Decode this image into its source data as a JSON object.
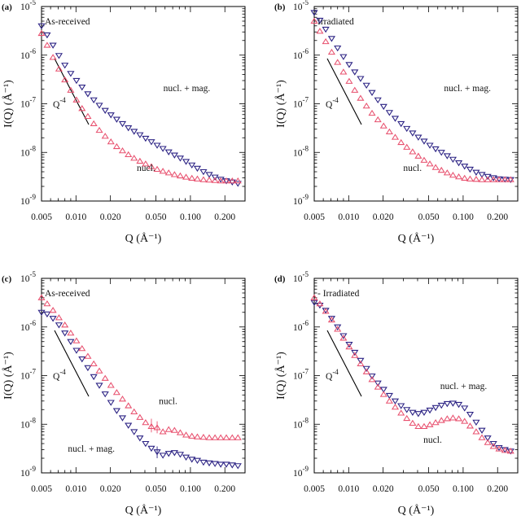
{
  "chart_data": [
    {
      "panel_label": "(a)",
      "inset_label": "As-received",
      "type": "scatter",
      "x_scale": "log",
      "y_scale": "log",
      "xlim": [
        0.005,
        0.3
      ],
      "ylim": [
        1e-09,
        1e-05
      ],
      "xlabel": "Q (Å⁻¹)",
      "ylabel": "I(Q) (Å⁻¹)",
      "xticklabels": [
        "0.005",
        "0.010",
        "0.020",
        "0.050",
        "0.100",
        "0.200"
      ],
      "yticklabels": [
        "10-9",
        "10-8",
        "10-7",
        "10-6",
        "10-5"
      ],
      "slope_label": "Q-4",
      "series": [
        {
          "marker": "triangle-down",
          "color": "#2c2384",
          "label": "nucl. + mag.",
          "x": [
            0.005,
            0.0056,
            0.0063,
            0.0071,
            0.008,
            0.009,
            0.0101,
            0.0113,
            0.0127,
            0.0143,
            0.016,
            0.018,
            0.0202,
            0.0227,
            0.0255,
            0.0287,
            0.0322,
            0.0362,
            0.0406,
            0.0456,
            0.0512,
            0.0575,
            0.0646,
            0.0726,
            0.0815,
            0.0916,
            0.103,
            0.115,
            0.13,
            0.146,
            0.164,
            0.184,
            0.206,
            0.232,
            0.26
          ],
          "y": [
            4e-06,
            2.6e-06,
            1.6e-06,
            9.8e-07,
            6.2e-07,
            4.2e-07,
            3e-07,
            2.2e-07,
            1.6e-07,
            1.2e-07,
            9.3e-08,
            7.3e-08,
            5.9e-08,
            4.8e-08,
            3.9e-08,
            3.2e-08,
            2.7e-08,
            2.3e-08,
            1.95e-08,
            1.65e-08,
            1.4e-08,
            1.2e-08,
            1.02e-08,
            8.8e-09,
            7.6e-09,
            6.5e-09,
            5.5e-09,
            4.7e-09,
            4e-09,
            3.5e-09,
            3.1e-09,
            2.8e-09,
            2.6e-09,
            2.45e-09,
            2.3e-09
          ]
        },
        {
          "marker": "triangle-up",
          "color": "#e8506e",
          "label": "nucl.",
          "x": [
            0.005,
            0.0056,
            0.0063,
            0.0071,
            0.008,
            0.009,
            0.0101,
            0.0113,
            0.0127,
            0.0143,
            0.016,
            0.018,
            0.0202,
            0.0227,
            0.0255,
            0.0287,
            0.0322,
            0.0362,
            0.0406,
            0.0456,
            0.0512,
            0.0575,
            0.0646,
            0.0726,
            0.0815,
            0.0916,
            0.103,
            0.115,
            0.13,
            0.146,
            0.164,
            0.184,
            0.206,
            0.232,
            0.26
          ],
          "y": [
            2.8e-06,
            1.6e-06,
            9e-07,
            5.2e-07,
            3.1e-07,
            1.9e-07,
            1.2e-07,
            8e-08,
            5.5e-08,
            3.9e-08,
            2.85e-08,
            2.15e-08,
            1.65e-08,
            1.32e-08,
            1.08e-08,
            9e-09,
            7.6e-09,
            6.6e-09,
            5.8e-09,
            5.1e-09,
            4.5e-09,
            4.1e-09,
            3.8e-09,
            3.5e-09,
            3.3e-09,
            3.1e-09,
            2.95e-09,
            2.85e-09,
            2.75e-09,
            2.7e-09,
            2.65e-09,
            2.6e-09,
            2.6e-09,
            2.6e-09,
            2.6e-09
          ]
        }
      ],
      "annotations": [
        {
          "text": "nucl. + mag.",
          "x": 0.058,
          "y": 1.8e-07
        },
        {
          "text": "nucl.",
          "x": 0.034,
          "y": 4.2e-09
        }
      ]
    },
    {
      "panel_label": "(b)",
      "inset_label": "Irradiated",
      "type": "scatter",
      "x_scale": "log",
      "y_scale": "log",
      "xlim": [
        0.005,
        0.3
      ],
      "ylim": [
        1e-09,
        1e-05
      ],
      "xlabel": "Q (Å⁻¹)",
      "ylabel": "I(Q) (Å⁻¹)",
      "xticklabels": [
        "0.005",
        "0.010",
        "0.020",
        "0.050",
        "0.100",
        "0.200"
      ],
      "yticklabels": [
        "10-9",
        "10-8",
        "10-7",
        "10-6",
        "10-5"
      ],
      "slope_label": "Q-4",
      "series": [
        {
          "marker": "triangle-down",
          "color": "#2c2384",
          "label": "nucl. + mag.",
          "x": [
            0.005,
            0.0056,
            0.0063,
            0.0071,
            0.008,
            0.009,
            0.0101,
            0.0113,
            0.0127,
            0.0143,
            0.016,
            0.018,
            0.0202,
            0.0227,
            0.0255,
            0.0287,
            0.0322,
            0.0362,
            0.0406,
            0.0456,
            0.0512,
            0.0575,
            0.0646,
            0.0726,
            0.0815,
            0.0916,
            0.103,
            0.115,
            0.13,
            0.146,
            0.164,
            0.184,
            0.206,
            0.232,
            0.26
          ],
          "y": [
            7.5e-06,
            5.2e-06,
            3.4e-06,
            2.2e-06,
            1.4e-06,
            9.3e-07,
            6.4e-07,
            4.5e-07,
            3.3e-07,
            2.4e-07,
            1.7e-07,
            1.2e-07,
            8.8e-08,
            6.6e-08,
            5e-08,
            3.9e-08,
            3.1e-08,
            2.5e-08,
            2.05e-08,
            1.7e-08,
            1.4e-08,
            1.18e-08,
            1e-08,
            8.5e-09,
            7.2e-09,
            6.1e-09,
            5.2e-09,
            4.5e-09,
            3.9e-09,
            3.5e-09,
            3.2e-09,
            3e-09,
            2.85e-09,
            2.8e-09,
            2.75e-09
          ]
        },
        {
          "marker": "triangle-up",
          "color": "#e8506e",
          "label": "nucl.",
          "x": [
            0.005,
            0.0056,
            0.0063,
            0.0071,
            0.008,
            0.009,
            0.0101,
            0.0113,
            0.0127,
            0.0143,
            0.016,
            0.018,
            0.0202,
            0.0227,
            0.0255,
            0.0287,
            0.0322,
            0.0362,
            0.0406,
            0.0456,
            0.0512,
            0.0575,
            0.0646,
            0.0726,
            0.0815,
            0.0916,
            0.103,
            0.115,
            0.13,
            0.146,
            0.164,
            0.184,
            0.206,
            0.232,
            0.26
          ],
          "y": [
            5e-06,
            3.1e-06,
            1.9e-06,
            1.15e-06,
            7.1e-07,
            4.5e-07,
            2.9e-07,
            1.9e-07,
            1.3e-07,
            9e-08,
            6.4e-08,
            4.7e-08,
            3.5e-08,
            2.65e-08,
            2.05e-08,
            1.6e-08,
            1.28e-08,
            1.03e-08,
            8.4e-09,
            6.9e-09,
            5.8e-09,
            4.9e-09,
            4.3e-09,
            3.8e-09,
            3.4e-09,
            3.15e-09,
            2.95e-09,
            2.85e-09,
            2.8e-09,
            2.75e-09,
            2.75e-09,
            2.75e-09,
            2.75e-09,
            2.75e-09,
            2.75e-09
          ]
        }
      ],
      "annotations": [
        {
          "text": "nucl. + mag.",
          "x": 0.068,
          "y": 1.8e-07
        },
        {
          "text": "nucl.",
          "x": 0.03,
          "y": 4.2e-09
        }
      ]
    },
    {
      "panel_label": "(c)",
      "inset_label": "As-received",
      "type": "scatter",
      "x_scale": "log",
      "y_scale": "log",
      "xlim": [
        0.005,
        0.3
      ],
      "ylim": [
        1e-09,
        1e-05
      ],
      "xlabel": "Q (Å⁻¹)",
      "ylabel": "I(Q) (Å⁻¹)",
      "xticklabels": [
        "0.005",
        "0.010",
        "0.020",
        "0.050",
        "0.100",
        "0.200"
      ],
      "yticklabels": [
        "10-9",
        "10-8",
        "10-7",
        "10-6",
        "10-5"
      ],
      "slope_label": "Q-4",
      "series": [
        {
          "marker": "triangle-down",
          "color": "#2c2384",
          "label": "nucl. + mag.",
          "x": [
            0.005,
            0.0056,
            0.0063,
            0.0071,
            0.008,
            0.009,
            0.0101,
            0.0113,
            0.0127,
            0.0143,
            0.016,
            0.018,
            0.0202,
            0.0227,
            0.0255,
            0.0287,
            0.0322,
            0.0362,
            0.0406,
            0.0456,
            0.0512,
            0.0575,
            0.0646,
            0.0726,
            0.0815,
            0.0916,
            0.103,
            0.115,
            0.13,
            0.146,
            0.164,
            0.184,
            0.206,
            0.232,
            0.26
          ],
          "y": [
            2e-06,
            1.85e-06,
            1.5e-06,
            1.1e-06,
            7.5e-07,
            5e-07,
            3.3e-07,
            2.2e-07,
            1.45e-07,
            9.5e-08,
            6.3e-08,
            4.2e-08,
            2.8e-08,
            1.9e-08,
            1.35e-08,
            9.5e-09,
            7e-09,
            5.2e-09,
            4e-09,
            3.2e-09,
            2.7e-09,
            2.3e-09,
            2.5e-09,
            2.6e-09,
            2.4e-09,
            2.1e-09,
            1.9e-09,
            1.8e-09,
            1.65e-09,
            1.6e-09,
            1.55e-09,
            1.5e-09,
            1.5e-09,
            1.45e-09,
            1.4e-09
          ],
          "error_bars": [
            {
              "x": 0.0512,
              "y_low": 2e-09,
              "y_high": 3.5e-09
            }
          ]
        },
        {
          "marker": "triangle-up",
          "color": "#e8506e",
          "label": "nucl.",
          "x": [
            0.005,
            0.0056,
            0.0063,
            0.0071,
            0.008,
            0.009,
            0.0101,
            0.0113,
            0.0127,
            0.0143,
            0.016,
            0.018,
            0.0202,
            0.0227,
            0.0255,
            0.0287,
            0.0322,
            0.0362,
            0.0406,
            0.0456,
            0.0512,
            0.0575,
            0.0646,
            0.0726,
            0.0815,
            0.0916,
            0.103,
            0.115,
            0.13,
            0.146,
            0.164,
            0.184,
            0.206,
            0.232,
            0.26
          ],
          "y": [
            4e-06,
            3e-06,
            2.2e-06,
            1.55e-06,
            1.1e-06,
            7.5e-07,
            5.2e-07,
            3.6e-07,
            2.5e-07,
            1.75e-07,
            1.25e-07,
            8.8e-08,
            6.3e-08,
            4.5e-08,
            3.3e-08,
            2.4e-08,
            1.8e-08,
            1.38e-08,
            1.08e-08,
            9e-09,
            8.5e-09,
            7e-09,
            7.8e-09,
            7.5e-09,
            6.7e-09,
            6e-09,
            5.7e-09,
            5.5e-09,
            5.4e-09,
            5.3e-09,
            5.3e-09,
            5.3e-09,
            5.3e-09,
            5.3e-09,
            5.3e-09
          ],
          "error_bars": [
            {
              "x": 0.0456,
              "y_low": 6.8e-09,
              "y_high": 1.3e-08
            },
            {
              "x": 0.0512,
              "y_low": 6.5e-09,
              "y_high": 1.15e-08
            }
          ]
        }
      ],
      "annotations": [
        {
          "text": "nucl.",
          "x": 0.053,
          "y": 2.6e-08
        },
        {
          "text": "nucl. + mag.",
          "x": 0.0085,
          "y": 2.7e-09
        }
      ]
    },
    {
      "panel_label": "(d)",
      "inset_label": "- Irradiated",
      "type": "scatter",
      "x_scale": "log",
      "y_scale": "log",
      "xlim": [
        0.005,
        0.3
      ],
      "ylim": [
        1e-09,
        1e-05
      ],
      "xlabel": "Q (Å⁻¹)",
      "ylabel": "I(Q) (Å⁻¹)",
      "xticklabels": [
        "0.005",
        "0.010",
        "0.020",
        "0.050",
        "0.100",
        "0.200"
      ],
      "yticklabels": [
        "10-9",
        "10-8",
        "10-7",
        "10-6",
        "10-5"
      ],
      "slope_label": "Q-4",
      "series": [
        {
          "marker": "triangle-down",
          "color": "#2c2384",
          "label": "nucl. + mag.",
          "x": [
            0.005,
            0.0056,
            0.0063,
            0.0071,
            0.008,
            0.009,
            0.0101,
            0.0113,
            0.0127,
            0.0143,
            0.016,
            0.018,
            0.0202,
            0.0227,
            0.0255,
            0.0287,
            0.0322,
            0.0362,
            0.0406,
            0.0456,
            0.0512,
            0.0575,
            0.0646,
            0.0726,
            0.0815,
            0.0916,
            0.103,
            0.115,
            0.13,
            0.146,
            0.164,
            0.184,
            0.206,
            0.232,
            0.26
          ],
          "y": [
            3.2e-06,
            2.8e-06,
            2.2e-06,
            1.5e-06,
            1e-06,
            6.6e-07,
            4.4e-07,
            3e-07,
            2.05e-07,
            1.4e-07,
            9.8e-08,
            7e-08,
            5.2e-08,
            3.9e-08,
            3e-08,
            2.4e-08,
            2e-08,
            1.75e-08,
            1.65e-08,
            1.75e-08,
            1.95e-08,
            2.2e-08,
            2.45e-08,
            2.65e-08,
            2.7e-08,
            2.55e-08,
            2.15e-08,
            1.6e-08,
            1.1e-08,
            7.5e-09,
            5.2e-09,
            4e-09,
            3.3e-09,
            3e-09,
            2.8e-09
          ]
        },
        {
          "marker": "triangle-up",
          "color": "#e8506e",
          "label": "nucl.",
          "x": [
            0.005,
            0.0056,
            0.0063,
            0.0071,
            0.008,
            0.009,
            0.0101,
            0.0113,
            0.0127,
            0.0143,
            0.016,
            0.018,
            0.0202,
            0.0227,
            0.0255,
            0.0287,
            0.0322,
            0.0362,
            0.0406,
            0.0456,
            0.0512,
            0.0575,
            0.0646,
            0.0726,
            0.0815,
            0.0916,
            0.103,
            0.115,
            0.13,
            0.146,
            0.164,
            0.184,
            0.206,
            0.232,
            0.26
          ],
          "y": [
            4e-06,
            3e-06,
            2.1e-06,
            1.4e-06,
            9e-07,
            5.9e-07,
            3.9e-07,
            2.6e-07,
            1.75e-07,
            1.2e-07,
            8.3e-08,
            5.8e-08,
            4.1e-08,
            3e-08,
            2.25e-08,
            1.7e-08,
            1.32e-08,
            1.05e-08,
            9e-09,
            9e-09,
            9.8e-09,
            1.08e-08,
            1.2e-08,
            1.3e-08,
            1.35e-08,
            1.3e-08,
            1.15e-08,
            9.2e-09,
            7e-09,
            5.3e-09,
            4.2e-09,
            3.5e-09,
            3.1e-09,
            2.9e-09,
            2.8e-09
          ]
        }
      ],
      "annotations": [
        {
          "text": "nucl. + mag.",
          "x": 0.063,
          "y": 5.3e-08
        },
        {
          "text": "nucl.",
          "x": 0.045,
          "y": 4.2e-09
        }
      ]
    }
  ]
}
